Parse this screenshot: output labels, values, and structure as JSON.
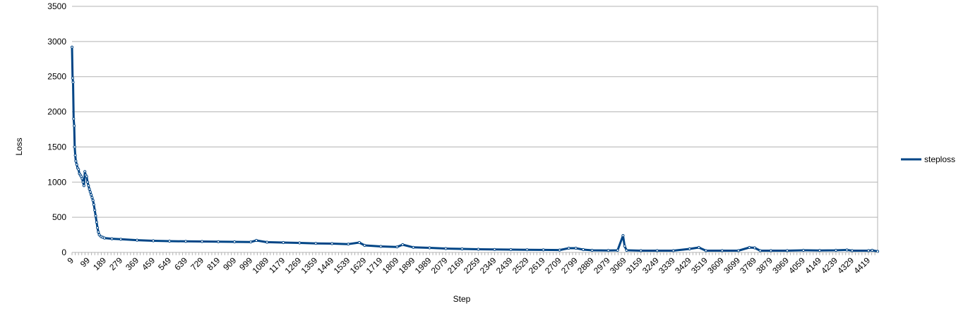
{
  "chart_data": {
    "type": "line",
    "title": "",
    "xlabel": "Step",
    "ylabel": "Loss",
    "ylim": [
      0,
      3500
    ],
    "yticks": [
      "0",
      "500",
      "1000",
      "1500",
      "2000",
      "2500",
      "3000",
      "3500"
    ],
    "xticks": [
      "9",
      "99",
      "189",
      "279",
      "369",
      "459",
      "549",
      "639",
      "729",
      "819",
      "909",
      "999",
      "1089",
      "1179",
      "1269",
      "1359",
      "1449",
      "1539",
      "1629",
      "1719",
      "1809",
      "1899",
      "1989",
      "2079",
      "2169",
      "2259",
      "2349",
      "2439",
      "2529",
      "2619",
      "2709",
      "2799",
      "2889",
      "2979",
      "3069",
      "3159",
      "3249",
      "3339",
      "3429",
      "3519",
      "3609",
      "3699",
      "3789",
      "3879",
      "3969",
      "4059",
      "4149",
      "4239",
      "4329",
      "4419"
    ],
    "x_range": [
      9,
      4470
    ],
    "grid": "horizontal",
    "legend_position": "right",
    "series": [
      {
        "name": "steploss",
        "color": "#004586",
        "points": [
          [
            9,
            2920
          ],
          [
            12,
            2480
          ],
          [
            15,
            2420
          ],
          [
            18,
            1900
          ],
          [
            21,
            1800
          ],
          [
            24,
            1500
          ],
          [
            27,
            1380
          ],
          [
            30,
            1300
          ],
          [
            35,
            1250
          ],
          [
            40,
            1200
          ],
          [
            45,
            1180
          ],
          [
            50,
            1120
          ],
          [
            55,
            1100
          ],
          [
            60,
            1080
          ],
          [
            65,
            1050
          ],
          [
            70,
            1000
          ],
          [
            75,
            950
          ],
          [
            80,
            1150
          ],
          [
            85,
            1100
          ],
          [
            90,
            1080
          ],
          [
            95,
            1000
          ],
          [
            100,
            950
          ],
          [
            105,
            900
          ],
          [
            110,
            860
          ],
          [
            115,
            820
          ],
          [
            120,
            780
          ],
          [
            125,
            740
          ],
          [
            130,
            680
          ],
          [
            135,
            600
          ],
          [
            140,
            520
          ],
          [
            145,
            430
          ],
          [
            150,
            350
          ],
          [
            155,
            290
          ],
          [
            160,
            250
          ],
          [
            170,
            225
          ],
          [
            180,
            215
          ],
          [
            189,
            205
          ],
          [
            230,
            195
          ],
          [
            279,
            188
          ],
          [
            369,
            175
          ],
          [
            459,
            165
          ],
          [
            549,
            160
          ],
          [
            639,
            157
          ],
          [
            729,
            155
          ],
          [
            819,
            152
          ],
          [
            909,
            150
          ],
          [
            999,
            148
          ],
          [
            1030,
            170
          ],
          [
            1089,
            145
          ],
          [
            1179,
            140
          ],
          [
            1269,
            135
          ],
          [
            1359,
            128
          ],
          [
            1449,
            125
          ],
          [
            1539,
            118
          ],
          [
            1600,
            140
          ],
          [
            1629,
            100
          ],
          [
            1719,
            85
          ],
          [
            1809,
            78
          ],
          [
            1840,
            110
          ],
          [
            1899,
            72
          ],
          [
            1989,
            65
          ],
          [
            2079,
            55
          ],
          [
            2169,
            50
          ],
          [
            2259,
            45
          ],
          [
            2349,
            42
          ],
          [
            2439,
            40
          ],
          [
            2529,
            38
          ],
          [
            2619,
            36
          ],
          [
            2709,
            34
          ],
          [
            2760,
            60
          ],
          [
            2799,
            60
          ],
          [
            2840,
            40
          ],
          [
            2889,
            30
          ],
          [
            2979,
            28
          ],
          [
            3030,
            30
          ],
          [
            3060,
            240
          ],
          [
            3069,
            90
          ],
          [
            3080,
            30
          ],
          [
            3159,
            25
          ],
          [
            3249,
            25
          ],
          [
            3339,
            25
          ],
          [
            3429,
            50
          ],
          [
            3480,
            70
          ],
          [
            3519,
            25
          ],
          [
            3609,
            25
          ],
          [
            3699,
            25
          ],
          [
            3760,
            70
          ],
          [
            3789,
            65
          ],
          [
            3820,
            25
          ],
          [
            3879,
            25
          ],
          [
            3969,
            25
          ],
          [
            4059,
            30
          ],
          [
            4149,
            28
          ],
          [
            4239,
            30
          ],
          [
            4300,
            35
          ],
          [
            4329,
            25
          ],
          [
            4419,
            25
          ],
          [
            4440,
            30
          ],
          [
            4470,
            15
          ]
        ]
      }
    ]
  }
}
